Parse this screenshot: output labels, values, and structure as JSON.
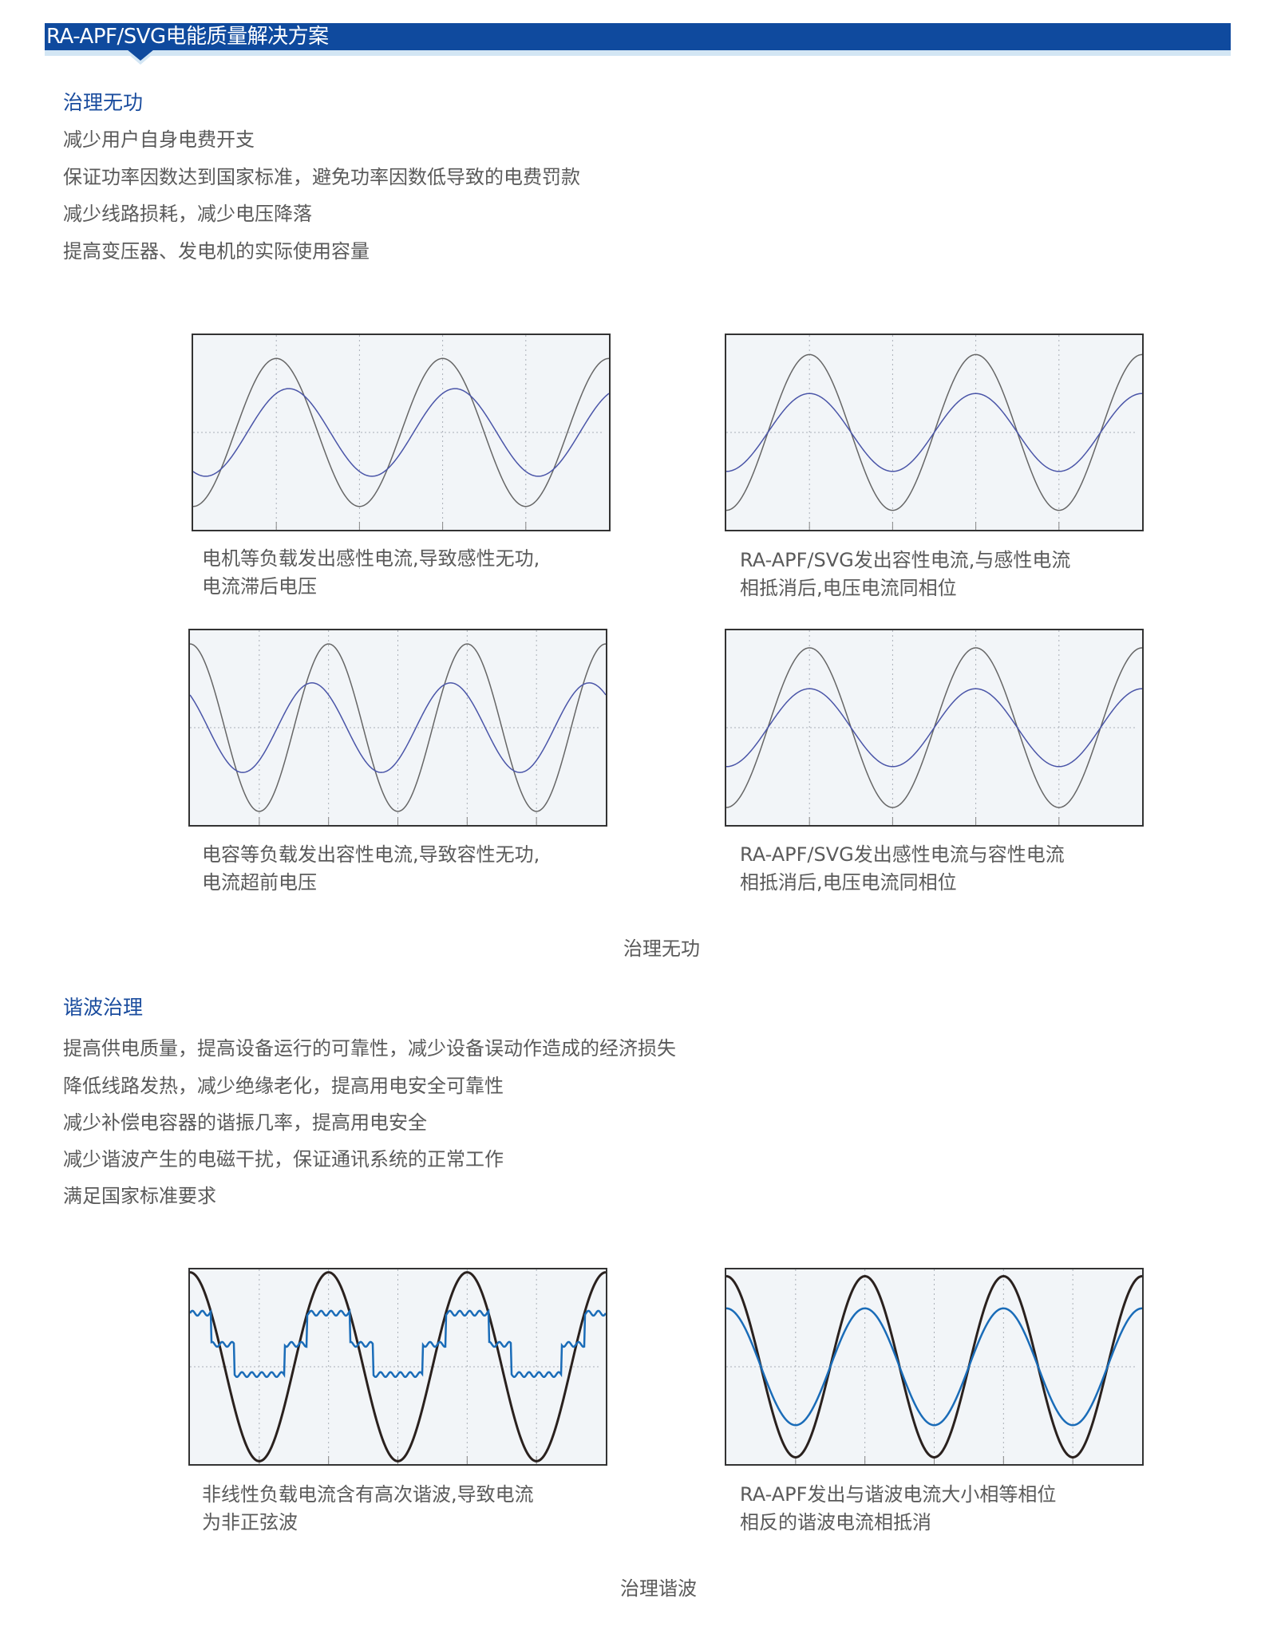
{
  "header": {
    "title": "RA-APF/SVG电能质量解决方案",
    "color": "#0f4a9e"
  },
  "section1": {
    "title": "治理无功",
    "lines": [
      "减少用户自身电费开支",
      "保证功率因数达到国家标准，避免功率因数低导致的电费罚款",
      "减少线路损耗，减少电压降落",
      "提高变压器、发电机的实际使用容量"
    ],
    "figures": [
      {
        "caption": [
          "电机等负载发出感性电流,导致感性无功,",
          "电流滞后电压"
        ]
      },
      {
        "caption": [
          "RA-APF/SVG发出容性电流,与感性电流",
          "相抵消后,电压电流同相位"
        ]
      },
      {
        "caption": [
          "电容等负载发出容性电流,导致容性无功,",
          "电流超前电压"
        ]
      },
      {
        "caption": [
          "RA-APF/SVG发出感性电流与容性电流",
          "相抵消后,电压电流同相位"
        ]
      }
    ],
    "figure_caption": "治理无功"
  },
  "section2": {
    "title": "谐波治理",
    "lines": [
      "提高供电质量，提高设备运行的可靠性，减少设备误动作造成的经济损失",
      "降低线路发热，减少绝缘老化，提高用电安全可靠性",
      "减少补偿电容器的谐振几率，提高用电安全",
      "减少谐波产生的电磁干扰，保证通讯系统的正常工作",
      "满足国家标准要求"
    ],
    "figures": [
      {
        "caption": [
          "非线性负载电流含有高次谐波,导致电流",
          "为非正弦波"
        ]
      },
      {
        "caption": [
          "RA-APF发出与谐波电流大小相等相位",
          "相反的谐波电流相抵消"
        ]
      }
    ],
    "figure_caption": "治理谐波"
  },
  "chart_data": [
    {
      "type": "line",
      "cycles": 2.5,
      "grid": true,
      "series": [
        {
          "shape": "sine",
          "amplitude": 0.76,
          "phase_deg": 180,
          "color": "#666666"
        },
        {
          "shape": "sine",
          "amplitude": 0.45,
          "phase_deg": 153,
          "color": "#4a55a8"
        }
      ]
    },
    {
      "type": "line",
      "cycles": 2.5,
      "grid": true,
      "series": [
        {
          "shape": "sine",
          "amplitude": 0.8,
          "phase_deg": 180,
          "color": "#666666"
        },
        {
          "shape": "sine",
          "amplitude": 0.4,
          "phase_deg": 180,
          "color": "#4a55a8"
        }
      ]
    },
    {
      "type": "line",
      "cycles": 3,
      "grid": true,
      "series": [
        {
          "shape": "sine",
          "amplitude": 0.86,
          "phase_deg": 0,
          "color": "#666666"
        },
        {
          "shape": "sine",
          "amplitude": 0.46,
          "phase_deg": 43,
          "color": "#4a55a8"
        }
      ]
    },
    {
      "type": "line",
      "cycles": 2.5,
      "grid": true,
      "series": [
        {
          "shape": "sine",
          "amplitude": 0.82,
          "phase_deg": 180,
          "color": "#666666"
        },
        {
          "shape": "sine",
          "amplitude": 0.4,
          "phase_deg": 180,
          "color": "#4a55a8"
        }
      ]
    },
    {
      "type": "line",
      "cycles": 3,
      "grid": true,
      "series": [
        {
          "shape": "sine",
          "amplitude": 0.97,
          "phase_deg": 0,
          "color": "#2a211e"
        },
        {
          "shape": "stepped",
          "levels": [
            0.55,
            0.23,
            -0.08
          ],
          "color": "#1a6cb8"
        }
      ]
    },
    {
      "type": "line",
      "cycles": 3,
      "grid": true,
      "series": [
        {
          "shape": "sine",
          "amplitude": 0.93,
          "phase_deg": 0,
          "color": "#2a211e"
        },
        {
          "shape": "sine",
          "amplitude": 0.6,
          "phase_deg": 0,
          "color": "#1a6cb8"
        }
      ]
    }
  ]
}
